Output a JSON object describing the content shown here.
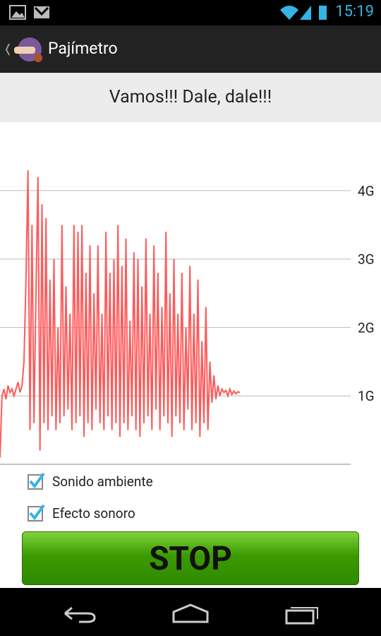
{
  "status_bar": {
    "time": "15:19"
  },
  "action_bar": {
    "title": "Pajímetro"
  },
  "message": "Vamos!!! Dale, dale!!!",
  "chart_data": {
    "type": "line",
    "color": "#ff5a5a",
    "grid": true,
    "ylim": [
      0,
      5
    ],
    "yticks": [
      {
        "value": 1,
        "label": "1G"
      },
      {
        "value": 2,
        "label": "2G"
      },
      {
        "value": 3,
        "label": "3G"
      },
      {
        "value": 4,
        "label": "4G"
      }
    ],
    "values": [
      0.1,
      1.0,
      1.1,
      0.95,
      1.15,
      1.05,
      1.1,
      1.0,
      1.1,
      1.2,
      1.05,
      1.15,
      1.5,
      2.7,
      4.3,
      0.5,
      3.5,
      0.6,
      2.5,
      4.2,
      0.2,
      3.8,
      0.6,
      3.6,
      0.5,
      2.7,
      0.7,
      3.0,
      0.5,
      2.0,
      0.6,
      3.5,
      0.7,
      2.6,
      0.8,
      2.2,
      0.5,
      3.5,
      0.6,
      3.4,
      0.7,
      3.5,
      0.4,
      2.8,
      0.6,
      3.2,
      0.5,
      2.5,
      0.8,
      3.2,
      0.6,
      2.2,
      0.5,
      3.4,
      0.7,
      2.8,
      0.5,
      3.0,
      0.6,
      3.5,
      0.4,
      2.9,
      0.6,
      3.3,
      0.5,
      2.1,
      0.7,
      3.1,
      0.5,
      3.0,
      0.4,
      2.6,
      0.6,
      3.3,
      0.7,
      2.2,
      0.5,
      3.2,
      0.8,
      2.8,
      0.5,
      2.3,
      0.7,
      3.4,
      0.6,
      2.5,
      0.4,
      3.0,
      0.7,
      2.2,
      0.6,
      2.8,
      0.5,
      2.0,
      0.8,
      2.9,
      0.5,
      2.2,
      0.6,
      2.7,
      0.4,
      1.8,
      0.6,
      2.3,
      0.5,
      1.5,
      0.9,
      1.3,
      0.95,
      1.15,
      1.0,
      1.1,
      1.05,
      1.08,
      1.0,
      1.1,
      1.02,
      1.07,
      1.03,
      1.06,
      1.05
    ]
  },
  "options": [
    {
      "label": "Sonido ambiente",
      "checked": true
    },
    {
      "label": "Efecto sonoro",
      "checked": true
    }
  ],
  "button": {
    "label": "STOP"
  }
}
